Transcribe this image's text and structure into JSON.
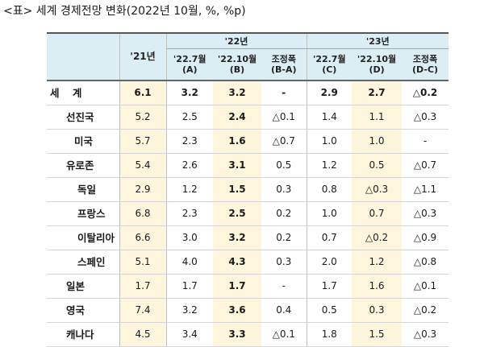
{
  "caption": "<표> 세계 경제전망 변화(2022년 10월, %, %p)",
  "header": {
    "year21": "'21년",
    "group22": "'22년",
    "group23": "'23년",
    "subcols": [
      {
        "line1": "'22.7월",
        "line2": "(A)"
      },
      {
        "line1": "'22.10월",
        "line2": "(B)"
      },
      {
        "line1": "조정폭",
        "line2": "(B-A)"
      },
      {
        "line1": "'22.7월",
        "line2": "(C)"
      },
      {
        "line1": "'22.10월",
        "line2": "(D)"
      },
      {
        "line1": "조정폭",
        "line2": "(D-C)"
      }
    ]
  },
  "rows": [
    {
      "label": "세  계",
      "values": [
        "6.1",
        "3.2",
        "3.2",
        "-",
        "2.9",
        "2.7",
        "△0.2"
      ]
    },
    {
      "label": "선진국",
      "values": [
        "5.2",
        "2.5",
        "2.4",
        "△0.1",
        "1.4",
        "1.1",
        "△0.3"
      ]
    },
    {
      "label": "미국",
      "values": [
        "5.7",
        "2.3",
        "1.6",
        "△0.7",
        "1.0",
        "1.0",
        "-"
      ]
    },
    {
      "label": "유로존",
      "values": [
        "5.4",
        "2.6",
        "3.1",
        "0.5",
        "1.2",
        "0.5",
        "△0.7"
      ]
    },
    {
      "label": "독일",
      "values": [
        "2.9",
        "1.2",
        "1.5",
        "0.3",
        "0.8",
        "△0.3",
        "△1.1"
      ]
    },
    {
      "label": "프랑스",
      "values": [
        "6.8",
        "2.3",
        "2.5",
        "0.2",
        "1.0",
        "0.7",
        "△0.3"
      ]
    },
    {
      "label": "이탈리아",
      "values": [
        "6.6",
        "3.0",
        "3.2",
        "0.2",
        "0.7",
        "△0.2",
        "△0.9"
      ]
    },
    {
      "label": "스페인",
      "values": [
        "5.1",
        "4.0",
        "4.3",
        "0.3",
        "2.0",
        "1.2",
        "△0.8"
      ]
    },
    {
      "label": "일본",
      "values": [
        "1.7",
        "1.7",
        "1.7",
        "-",
        "1.7",
        "1.6",
        "△0.1"
      ]
    },
    {
      "label": "영국",
      "values": [
        "7.4",
        "3.2",
        "3.6",
        "0.4",
        "0.5",
        "0.3",
        "△0.2"
      ]
    },
    {
      "label": "캐나다",
      "values": [
        "4.5",
        "3.4",
        "3.3",
        "△0.1",
        "1.8",
        "1.5",
        "△0.3"
      ]
    }
  ]
}
